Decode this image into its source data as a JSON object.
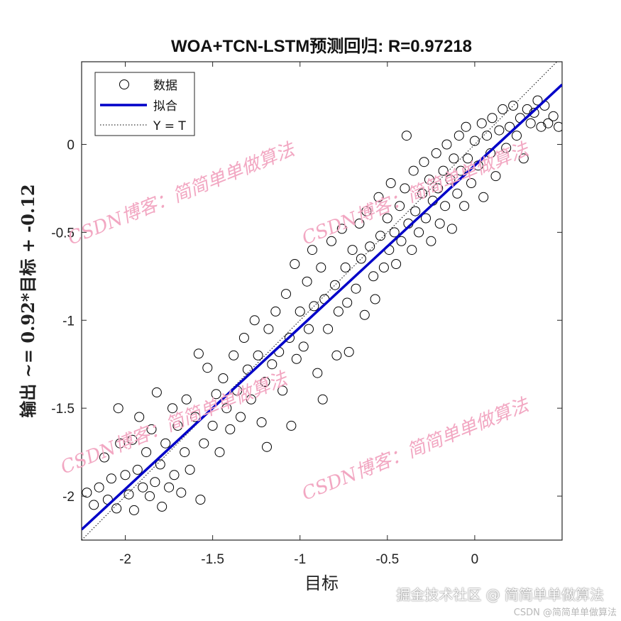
{
  "chart_data": {
    "type": "scatter",
    "title": "WOA+TCN-LSTM预测回归: R=0.97218",
    "xlabel": "目标",
    "ylabel": "输出 ~= 0.92*目标 + -0.12",
    "xlim": [
      -2.25,
      0.5
    ],
    "ylim": [
      -2.25,
      0.47
    ],
    "x_ticks": [
      -2,
      -1.5,
      -1,
      -0.5,
      0
    ],
    "y_ticks": [
      -2,
      -1.5,
      -1,
      -0.5,
      0
    ],
    "x_tick_labels": [
      "-2",
      "-1.5",
      "-1",
      "-0.5",
      "0"
    ],
    "y_tick_labels": [
      "-2",
      "-1.5",
      "-1",
      "-0.5",
      "0"
    ],
    "grid": false,
    "legend_position": "top-left",
    "legend": [
      "数据",
      "拟合",
      "Y = T"
    ],
    "fit": {
      "slope": 0.92,
      "intercept": -0.12,
      "color": "#0000c8"
    },
    "identity_line": {
      "slope": 1,
      "intercept": 0
    },
    "marker_color": "#000000",
    "points": [
      [
        -2.22,
        -1.98
      ],
      [
        -2.18,
        -2.05
      ],
      [
        -2.15,
        -1.95
      ],
      [
        -2.12,
        -1.78
      ],
      [
        -2.1,
        -2.02
      ],
      [
        -2.08,
        -1.9
      ],
      [
        -2.05,
        -2.07
      ],
      [
        -2.04,
        -1.5
      ],
      [
        -2.03,
        -1.7
      ],
      [
        -2.0,
        -1.88
      ],
      [
        -1.98,
        -1.99
      ],
      [
        -1.96,
        -1.68
      ],
      [
        -1.95,
        -2.08
      ],
      [
        -1.93,
        -1.85
      ],
      [
        -1.92,
        -1.55
      ],
      [
        -1.9,
        -1.95
      ],
      [
        -1.88,
        -1.75
      ],
      [
        -1.86,
        -2.0
      ],
      [
        -1.85,
        -1.62
      ],
      [
        -1.83,
        -1.92
      ],
      [
        -1.82,
        -1.41
      ],
      [
        -1.8,
        -1.82
      ],
      [
        -1.79,
        -2.06
      ],
      [
        -1.77,
        -1.7
      ],
      [
        -1.75,
        -1.95
      ],
      [
        -1.73,
        -1.5
      ],
      [
        -1.72,
        -1.88
      ],
      [
        -1.7,
        -1.6
      ],
      [
        -1.68,
        -1.98
      ],
      [
        -1.66,
        -1.75
      ],
      [
        -1.65,
        -1.45
      ],
      [
        -1.63,
        -1.85
      ],
      [
        -1.6,
        -1.55
      ],
      [
        -1.58,
        -1.19
      ],
      [
        -1.57,
        -2.02
      ],
      [
        -1.55,
        -1.7
      ],
      [
        -1.53,
        -1.27
      ],
      [
        -1.5,
        -1.6
      ],
      [
        -1.48,
        -1.42
      ],
      [
        -1.46,
        -1.75
      ],
      [
        -1.44,
        -1.33
      ],
      [
        -1.42,
        -1.5
      ],
      [
        -1.4,
        -1.62
      ],
      [
        -1.38,
        -1.2
      ],
      [
        -1.36,
        -1.4
      ],
      [
        -1.34,
        -1.55
      ],
      [
        -1.32,
        -1.1
      ],
      [
        -1.3,
        -1.28
      ],
      [
        -1.28,
        -1.45
      ],
      [
        -1.26,
        -1.0
      ],
      [
        -1.24,
        -1.2
      ],
      [
        -1.22,
        -1.58
      ],
      [
        -1.2,
        -1.35
      ],
      [
        -1.19,
        -1.72
      ],
      [
        -1.18,
        -1.05
      ],
      [
        -1.16,
        -1.25
      ],
      [
        -1.14,
        -0.95
      ],
      [
        -1.12,
        -1.18
      ],
      [
        -1.1,
        -1.4
      ],
      [
        -1.08,
        -0.85
      ],
      [
        -1.06,
        -1.1
      ],
      [
        -1.05,
        -1.6
      ],
      [
        -1.03,
        -0.68
      ],
      [
        -1.02,
        -1.22
      ],
      [
        -1.0,
        -0.95
      ],
      [
        -0.98,
        -1.15
      ],
      [
        -0.96,
        -0.78
      ],
      [
        -0.95,
        -1.05
      ],
      [
        -0.93,
        -0.6
      ],
      [
        -0.92,
        -0.92
      ],
      [
        -0.9,
        -1.3
      ],
      [
        -0.88,
        -0.7
      ],
      [
        -0.87,
        -1.45
      ],
      [
        -0.86,
        -0.88
      ],
      [
        -0.84,
        -1.05
      ],
      [
        -0.82,
        -0.55
      ],
      [
        -0.8,
        -0.8
      ],
      [
        -0.79,
        -1.2
      ],
      [
        -0.78,
        -0.95
      ],
      [
        -0.76,
        -0.48
      ],
      [
        -0.74,
        -0.7
      ],
      [
        -0.73,
        -0.9
      ],
      [
        -0.72,
        -1.18
      ],
      [
        -0.7,
        -0.6
      ],
      [
        -0.68,
        -0.82
      ],
      [
        -0.66,
        -0.45
      ],
      [
        -0.65,
        -0.65
      ],
      [
        -0.63,
        -0.97
      ],
      [
        -0.62,
        -0.38
      ],
      [
        -0.6,
        -0.58
      ],
      [
        -0.58,
        -0.75
      ],
      [
        -0.57,
        -0.88
      ],
      [
        -0.55,
        -0.3
      ],
      [
        -0.54,
        -0.52
      ],
      [
        -0.52,
        -0.7
      ],
      [
        -0.5,
        -0.42
      ],
      [
        -0.49,
        -0.6
      ],
      [
        -0.48,
        -0.22
      ],
      [
        -0.46,
        -0.5
      ],
      [
        -0.45,
        -0.68
      ],
      [
        -0.43,
        -0.35
      ],
      [
        -0.42,
        -0.55
      ],
      [
        -0.4,
        -0.25
      ],
      [
        -0.39,
        0.05
      ],
      [
        -0.38,
        -0.45
      ],
      [
        -0.36,
        -0.6
      ],
      [
        -0.35,
        -0.15
      ],
      [
        -0.34,
        -0.38
      ],
      [
        -0.32,
        -0.5
      ],
      [
        -0.3,
        -0.28
      ],
      [
        -0.29,
        -0.1
      ],
      [
        -0.28,
        -0.42
      ],
      [
        -0.26,
        -0.2
      ],
      [
        -0.25,
        -0.55
      ],
      [
        -0.24,
        -0.32
      ],
      [
        -0.22,
        -0.05
      ],
      [
        -0.21,
        -0.25
      ],
      [
        -0.2,
        -0.45
      ],
      [
        -0.18,
        -0.15
      ],
      [
        -0.17,
        -0.35
      ],
      [
        -0.16,
        0.0
      ],
      [
        -0.14,
        -0.2
      ],
      [
        -0.13,
        -0.48
      ],
      [
        -0.12,
        -0.08
      ],
      [
        -0.1,
        -0.28
      ],
      [
        -0.09,
        0.05
      ],
      [
        -0.08,
        -0.15
      ],
      [
        -0.06,
        -0.35
      ],
      [
        -0.05,
        0.1
      ],
      [
        -0.04,
        -0.08
      ],
      [
        -0.02,
        -0.22
      ],
      [
        0.0,
        0.02
      ],
      [
        0.02,
        -0.12
      ],
      [
        0.04,
        0.12
      ],
      [
        0.05,
        -0.3
      ],
      [
        0.07,
        0.05
      ],
      [
        0.09,
        -0.05
      ],
      [
        0.1,
        0.15
      ],
      [
        0.12,
        -0.18
      ],
      [
        0.14,
        0.08
      ],
      [
        0.16,
        0.2
      ],
      [
        0.18,
        -0.02
      ],
      [
        0.2,
        0.1
      ],
      [
        0.22,
        0.22
      ],
      [
        0.24,
        0.05
      ],
      [
        0.26,
        0.15
      ],
      [
        0.28,
        -0.08
      ],
      [
        0.3,
        0.2
      ],
      [
        0.32,
        0.12
      ],
      [
        0.34,
        0.18
      ],
      [
        0.36,
        0.25
      ],
      [
        0.38,
        0.1
      ],
      [
        0.4,
        0.22
      ],
      [
        0.42,
        0.12
      ],
      [
        0.45,
        0.16
      ],
      [
        0.48,
        0.1
      ]
    ]
  },
  "watermarks": [
    "CSDN博客：简简单单做算法",
    "CSDN博客：简简单单做算法",
    "CSDN博客：简简单单做算法",
    "CSDN博客：简简单单做算法"
  ],
  "footer": {
    "main": "掘金技术社区 @ 简简单单做算法",
    "sub": "CSDN @简简单单做算法"
  }
}
